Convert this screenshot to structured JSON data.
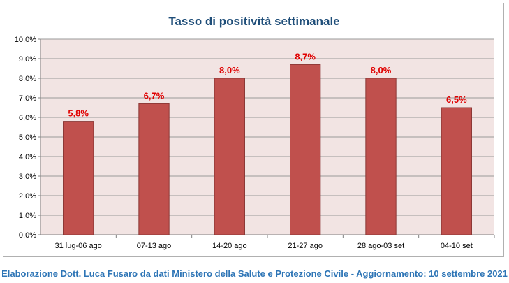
{
  "chart_data": {
    "type": "bar",
    "title": "Tasso di positività settimanale",
    "categories": [
      "31 lug-06 ago",
      "07-13 ago",
      "14-20 ago",
      "21-27 ago",
      "28 ago-03 set",
      "04-10 set"
    ],
    "values": [
      5.8,
      6.7,
      8.0,
      8.7,
      8.0,
      6.5
    ],
    "data_labels": [
      "5,8%",
      "6,7%",
      "8,0%",
      "8,7%",
      "8,0%",
      "6,5%"
    ],
    "y_ticks": [
      "0,0%",
      "1,0%",
      "2,0%",
      "3,0%",
      "4,0%",
      "5,0%",
      "6,0%",
      "7,0%",
      "8,0%",
      "9,0%",
      "10,0%"
    ],
    "ylim": [
      0,
      10
    ],
    "xlabel": "",
    "ylabel": "",
    "grid": true,
    "legend": "none",
    "colors": {
      "bar": "#c0504d",
      "bar_border": "#8c3836",
      "data_label": "#e00000",
      "plot_background": "#f2e4e3",
      "grid": "#9a9a9a",
      "title": "#1f4e79"
    }
  },
  "footer": {
    "caption": "Elaborazione Dott. Luca Fusaro da dati Ministero della Salute e Protezione Civile - Aggiornamento: 10 settembre 2021"
  }
}
